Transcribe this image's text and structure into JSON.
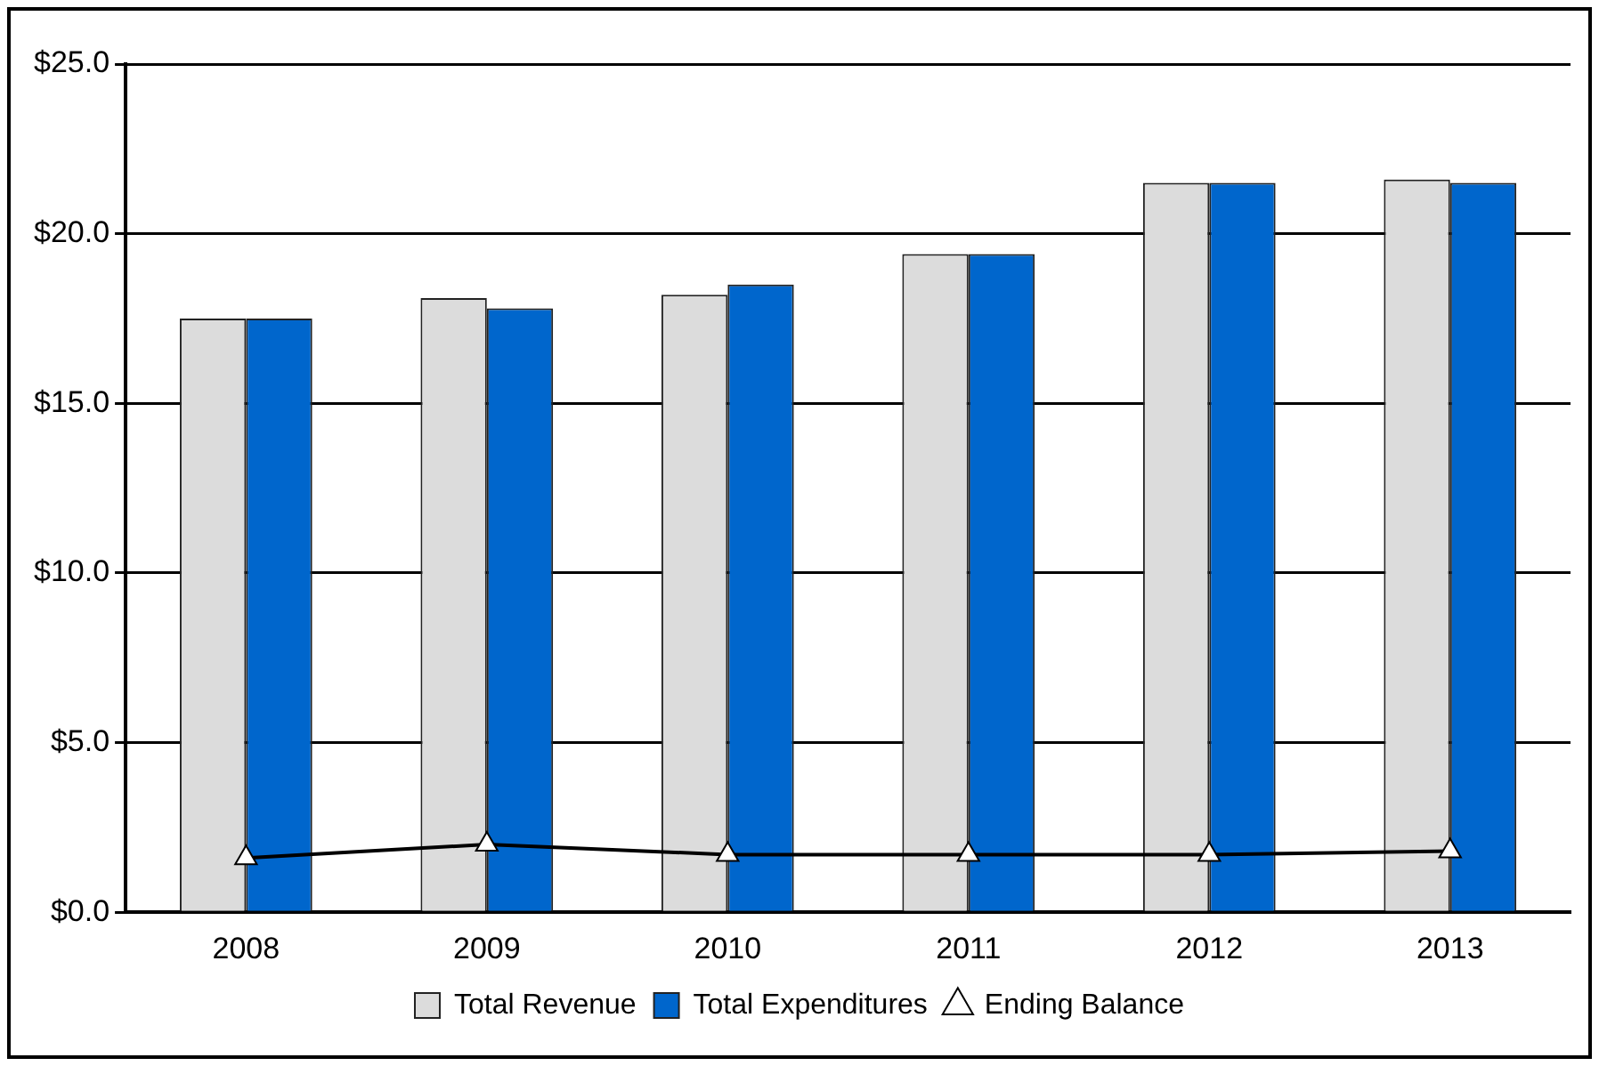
{
  "chart_data": {
    "type": "bar",
    "categories": [
      "2008",
      "2009",
      "2010",
      "2011",
      "2012",
      "2013"
    ],
    "series": [
      {
        "name": "Total Revenue",
        "color": "#dcdcdc",
        "values": [
          17.5,
          18.1,
          18.2,
          19.4,
          21.5,
          21.6
        ]
      },
      {
        "name": "Total Expenditures",
        "color": "#0066cc",
        "values": [
          17.5,
          17.8,
          18.5,
          19.4,
          21.5,
          21.5
        ]
      },
      {
        "name": "Ending Balance",
        "type": "line",
        "color": "#000000",
        "values": [
          1.6,
          2.0,
          1.7,
          1.7,
          1.7,
          1.8
        ]
      }
    ],
    "ylim": [
      0,
      25
    ],
    "yticks": [
      {
        "value": 0,
        "label": "$0.0"
      },
      {
        "value": 5,
        "label": "$5.0"
      },
      {
        "value": 10,
        "label": "$10.0"
      },
      {
        "value": 15,
        "label": "$15.0"
      },
      {
        "value": 20,
        "label": "$20.0"
      },
      {
        "value": 25,
        "label": "$25.0"
      }
    ],
    "grid": "y",
    "legend": "bottom",
    "marker": "triangle"
  }
}
